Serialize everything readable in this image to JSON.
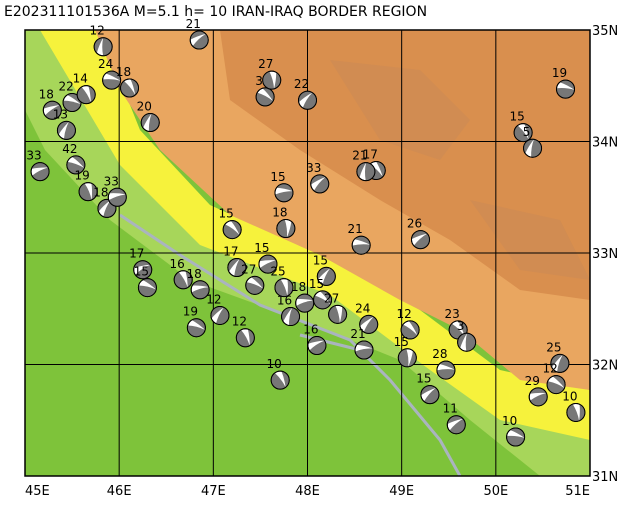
{
  "title": "E202311101536A  M=5.1  h= 10 IRAN-IRAQ BORDER REGION",
  "map": {
    "lon_ticks": [
      {
        "value": 45,
        "label": "45E"
      },
      {
        "value": 46,
        "label": "46E"
      },
      {
        "value": 47,
        "label": "47E"
      },
      {
        "value": 48,
        "label": "48E"
      },
      {
        "value": 49,
        "label": "49E"
      },
      {
        "value": 50,
        "label": "50E"
      },
      {
        "value": 51,
        "label": "51E"
      }
    ],
    "lat_ticks": [
      {
        "value": 31,
        "label": "31N"
      },
      {
        "value": 32,
        "label": "32N"
      },
      {
        "value": 33,
        "label": "33N"
      },
      {
        "value": 34,
        "label": "34N"
      },
      {
        "value": 35,
        "label": "35N"
      }
    ],
    "events": [
      {
        "lon": 45.83,
        "lat": 34.85,
        "depth": "12"
      },
      {
        "lon": 46.85,
        "lat": 34.91,
        "depth": "21"
      },
      {
        "lon": 45.92,
        "lat": 34.55,
        "depth": "24"
      },
      {
        "lon": 46.11,
        "lat": 34.48,
        "depth": "18"
      },
      {
        "lon": 46.33,
        "lat": 34.17,
        "depth": "20"
      },
      {
        "lon": 45.29,
        "lat": 34.28,
        "depth": "18"
      },
      {
        "lon": 45.5,
        "lat": 34.35,
        "depth": "22"
      },
      {
        "lon": 45.65,
        "lat": 34.42,
        "depth": "14"
      },
      {
        "lon": 45.44,
        "lat": 34.1,
        "depth": "13"
      },
      {
        "lon": 45.16,
        "lat": 33.73,
        "depth": "33"
      },
      {
        "lon": 45.54,
        "lat": 33.79,
        "depth": "42"
      },
      {
        "lon": 45.67,
        "lat": 33.55,
        "depth": "19"
      },
      {
        "lon": 45.87,
        "lat": 33.4,
        "depth": "18"
      },
      {
        "lon": 45.98,
        "lat": 33.5,
        "depth": "33"
      },
      {
        "lon": 47.55,
        "lat": 34.4,
        "depth": "3"
      },
      {
        "lon": 47.62,
        "lat": 34.55,
        "depth": "27"
      },
      {
        "lon": 48.0,
        "lat": 34.37,
        "depth": "22"
      },
      {
        "lon": 47.75,
        "lat": 33.54,
        "depth": "15"
      },
      {
        "lon": 47.2,
        "lat": 33.21,
        "depth": "15"
      },
      {
        "lon": 47.77,
        "lat": 33.22,
        "depth": "18"
      },
      {
        "lon": 48.13,
        "lat": 33.62,
        "depth": "33"
      },
      {
        "lon": 48.57,
        "lat": 33.07,
        "depth": "21"
      },
      {
        "lon": 48.73,
        "lat": 33.74,
        "depth": "17"
      },
      {
        "lon": 48.62,
        "lat": 33.73,
        "depth": "21"
      },
      {
        "lon": 49.2,
        "lat": 33.12,
        "depth": "26"
      },
      {
        "lon": 50.74,
        "lat": 34.47,
        "depth": "19"
      },
      {
        "lon": 50.29,
        "lat": 34.08,
        "depth": "15"
      },
      {
        "lon": 50.39,
        "lat": 33.94,
        "depth": "5"
      },
      {
        "lon": 46.25,
        "lat": 32.85,
        "depth": "17"
      },
      {
        "lon": 46.3,
        "lat": 32.69,
        "depth": "15"
      },
      {
        "lon": 46.68,
        "lat": 32.76,
        "depth": "16"
      },
      {
        "lon": 47.25,
        "lat": 32.87,
        "depth": "17"
      },
      {
        "lon": 47.58,
        "lat": 32.9,
        "depth": "15"
      },
      {
        "lon": 47.44,
        "lat": 32.71,
        "depth": "27"
      },
      {
        "lon": 47.75,
        "lat": 32.69,
        "depth": "25"
      },
      {
        "lon": 48.2,
        "lat": 32.79,
        "depth": "15"
      },
      {
        "lon": 47.97,
        "lat": 32.55,
        "depth": "18"
      },
      {
        "lon": 48.16,
        "lat": 32.58,
        "depth": "15"
      },
      {
        "lon": 48.32,
        "lat": 32.45,
        "depth": "27"
      },
      {
        "lon": 48.65,
        "lat": 32.36,
        "depth": "24"
      },
      {
        "lon": 48.6,
        "lat": 32.13,
        "depth": "21"
      },
      {
        "lon": 49.09,
        "lat": 32.31,
        "depth": "12"
      },
      {
        "lon": 49.06,
        "lat": 32.06,
        "depth": "15"
      },
      {
        "lon": 49.3,
        "lat": 31.73,
        "depth": "15"
      },
      {
        "lon": 49.47,
        "lat": 31.95,
        "depth": "28"
      },
      {
        "lon": 49.6,
        "lat": 32.31,
        "depth": "23"
      },
      {
        "lon": 49.69,
        "lat": 32.2,
        "depth": "3"
      },
      {
        "lon": 49.58,
        "lat": 31.46,
        "depth": "11"
      },
      {
        "lon": 50.21,
        "lat": 31.35,
        "depth": "10"
      },
      {
        "lon": 47.71,
        "lat": 31.86,
        "depth": "10"
      },
      {
        "lon": 47.82,
        "lat": 32.43,
        "depth": "16"
      },
      {
        "lon": 48.1,
        "lat": 32.17,
        "depth": "16"
      },
      {
        "lon": 46.82,
        "lat": 32.33,
        "depth": "19"
      },
      {
        "lon": 47.34,
        "lat": 32.24,
        "depth": "12"
      },
      {
        "lon": 50.68,
        "lat": 32.01,
        "depth": "25"
      },
      {
        "lon": 50.45,
        "lat": 31.71,
        "depth": "29"
      },
      {
        "lon": 50.64,
        "lat": 31.82,
        "depth": "12"
      },
      {
        "lon": 50.85,
        "lat": 31.57,
        "depth": "10"
      },
      {
        "lon": 47.07,
        "lat": 32.44,
        "depth": "12"
      },
      {
        "lon": 46.86,
        "lat": 32.67,
        "depth": "18"
      }
    ]
  }
}
